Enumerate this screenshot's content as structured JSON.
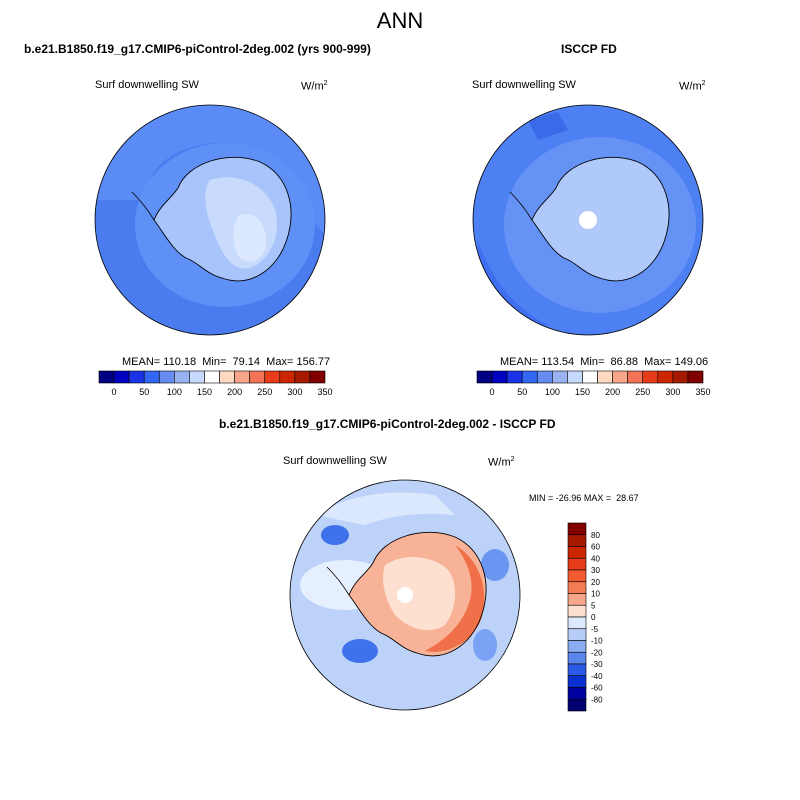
{
  "page": {
    "title": "ANN"
  },
  "chart_data": [
    {
      "type": "polar-contour-map",
      "title": "b.e21.B1850.f19_g17.CMIP6-piControl-2deg.002 (yrs 900-999)",
      "variable": "Surf downwelling SW",
      "units": "W/m",
      "units_exp": "2",
      "stats": {
        "mean_label": "MEAN=",
        "mean": "110.18",
        "min_label": "Min=",
        "min": "79.14",
        "max_label": "Max=",
        "max": "156.77"
      },
      "colorbar": {
        "orientation": "horizontal",
        "levels": [
          0,
          25,
          50,
          75,
          100,
          125,
          150,
          175,
          200,
          225,
          250,
          275,
          300,
          325,
          350
        ],
        "tick_labels": [
          "0",
          "50",
          "100",
          "150",
          "200",
          "250",
          "300",
          "350"
        ],
        "colors": [
          "#000080",
          "#0000c0",
          "#1a33e6",
          "#3366f2",
          "#668cf2",
          "#99b3f2",
          "#c6d9ff",
          "#ffffff",
          "#ffd9c2",
          "#f7a68a",
          "#f27355",
          "#e63c1a",
          "#cc2600",
          "#a61a00",
          "#800000"
        ]
      }
    },
    {
      "type": "polar-contour-map",
      "title": "ISCCP FD",
      "variable": "Surf downwelling SW",
      "units": "W/m",
      "units_exp": "2",
      "stats": {
        "mean_label": "MEAN=",
        "mean": "113.54",
        "min_label": "Min=",
        "min": "86.88",
        "max_label": "Max=",
        "max": "149.06"
      },
      "colorbar": {
        "orientation": "horizontal",
        "levels": [
          0,
          25,
          50,
          75,
          100,
          125,
          150,
          175,
          200,
          225,
          250,
          275,
          300,
          325,
          350
        ],
        "tick_labels": [
          "0",
          "50",
          "100",
          "150",
          "200",
          "250",
          "300",
          "350"
        ],
        "colors": [
          "#000080",
          "#0000c0",
          "#1a33e6",
          "#3366f2",
          "#668cf2",
          "#99b3f2",
          "#c6d9ff",
          "#ffffff",
          "#ffd9c2",
          "#f7a68a",
          "#f27355",
          "#e63c1a",
          "#cc2600",
          "#a61a00",
          "#800000"
        ]
      }
    },
    {
      "type": "polar-contour-map",
      "title": "b.e21.B1850.f19_g17.CMIP6-piControl-2deg.002 - ISCCP FD",
      "variable": "Surf downwelling SW",
      "units": "W/m",
      "units_exp": "2",
      "stats": {
        "min_label": "MIN =",
        "min": "-26.96",
        "max_label": "MAX =",
        "max": "28.67"
      },
      "colorbar": {
        "orientation": "vertical",
        "tick_labels": [
          "80",
          "60",
          "40",
          "30",
          "20",
          "10",
          "5",
          "0",
          "-5",
          "-10",
          "-20",
          "-30",
          "-40",
          "-60",
          "-80"
        ],
        "colors": [
          "#800000",
          "#a61a00",
          "#cc2600",
          "#e63c1a",
          "#f25a30",
          "#f27d55",
          "#f7a68a",
          "#fde0d0",
          "#dce9fb",
          "#b5cdf7",
          "#8aadf2",
          "#5a85eb",
          "#2a5ae6",
          "#0a30d0",
          "#0000a0",
          "#000070"
        ]
      }
    }
  ]
}
